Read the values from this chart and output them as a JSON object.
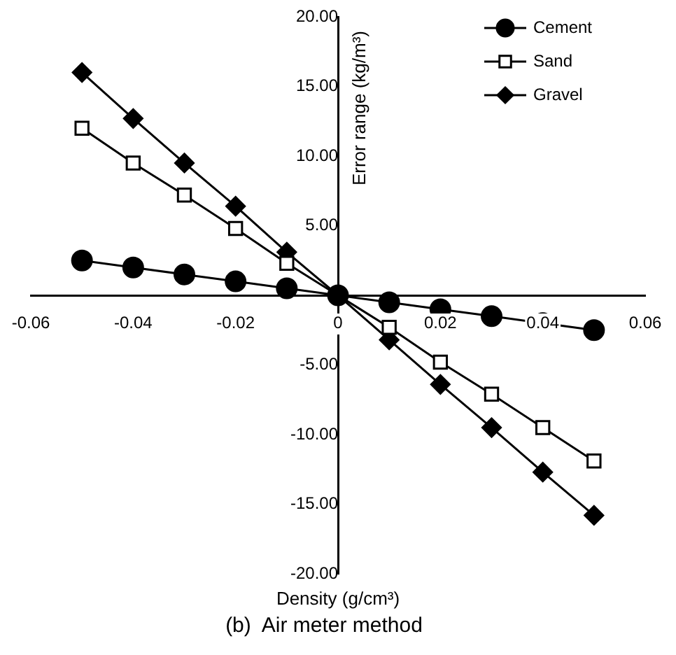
{
  "chart_data": {
    "type": "line",
    "xlabel": "Density (g/cm³)",
    "ylabel": "Error range (kg/m³)",
    "annotations": [
      "(b)  Air meter method"
    ],
    "x": [
      -0.05,
      -0.04,
      -0.03,
      -0.02,
      -0.01,
      0,
      0.01,
      0.02,
      0.03,
      0.04,
      0.05
    ],
    "series": [
      {
        "name": "Cement",
        "color": "#000000",
        "marker": "circle",
        "values": [
          2.5,
          2,
          1.5,
          1,
          0.5,
          0,
          -0.5,
          -1,
          -1.5,
          -2,
          -2.5
        ]
      },
      {
        "name": "Sand",
        "color": "#000000",
        "marker": "square",
        "values": [
          12,
          9.5,
          7.2,
          4.8,
          2.3,
          0,
          -2.3,
          -4.8,
          -7.1,
          -9.5,
          -11.9
        ]
      },
      {
        "name": "Gravel",
        "color": "#000000",
        "marker": "diamond",
        "values": [
          16,
          12.7,
          9.5,
          6.4,
          3.1,
          0,
          -3.2,
          -6.4,
          -9.5,
          -12.7,
          -15.8
        ]
      }
    ],
    "xlim": [
      -0.06,
      0.06
    ],
    "xticks": [
      -0.06,
      -0.04,
      -0.02,
      0,
      0.02,
      0.04,
      0.06
    ],
    "ylim": [
      -20,
      20
    ],
    "yticks": [
      {
        "value": -20,
        "label": "-20.00"
      },
      {
        "value": -15,
        "label": "-15.00"
      },
      {
        "value": -10,
        "label": "-10.00"
      },
      {
        "value": -5,
        "label": "-5.00"
      },
      {
        "value": 0,
        "label": null
      },
      {
        "value": 5,
        "label": "5.00"
      },
      {
        "value": 10,
        "label": "10.00"
      },
      {
        "value": 15,
        "label": "15.00"
      },
      {
        "value": 20,
        "label": "20.00"
      }
    ],
    "grid": false,
    "legend": "top right",
    "line_style": "solid"
  }
}
